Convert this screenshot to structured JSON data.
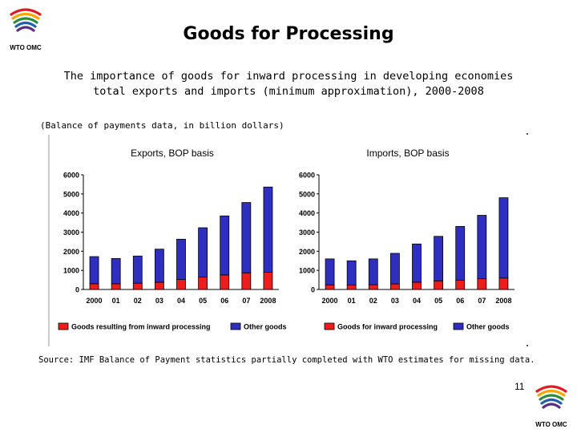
{
  "slide": {
    "title": "Goods for Processing",
    "subtitle_line1": "The importance of goods for inward processing in developing economies",
    "subtitle_line2": "total exports and imports (minimum approximation), 2000-2008",
    "note": "(Balance of payments data, in billion dollars)",
    "source": "Source: IMF Balance of Payment statistics partially completed with WTO estimates for missing data.",
    "page_number": "11",
    "logo_text": "WTO OMC"
  },
  "colors": {
    "processing": "#ee1c1c",
    "other": "#2e2fc0",
    "logo_stripes": [
      "#e21b23",
      "#f7a600",
      "#2c8c3c",
      "#1e5fb0",
      "#5a2d87"
    ]
  },
  "chart_data": [
    {
      "type": "bar",
      "stacked": true,
      "title": "Exports, BOP basis",
      "categories": [
        "2000",
        "01",
        "02",
        "03",
        "04",
        "05",
        "06",
        "07",
        "2008"
      ],
      "ylim": [
        0,
        6000
      ],
      "yticks": [
        0,
        1000,
        2000,
        3000,
        4000,
        5000,
        6000
      ],
      "grid": false,
      "legend_position": "bottom",
      "series": [
        {
          "name": "Goods resulting from inward processing",
          "values": [
            300,
            300,
            330,
            380,
            520,
            650,
            760,
            870,
            900
          ]
        },
        {
          "name": "Other goods",
          "values": [
            1420,
            1320,
            1420,
            1730,
            2110,
            2580,
            3090,
            3680,
            4460
          ]
        }
      ]
    },
    {
      "type": "bar",
      "stacked": true,
      "title": "Imports, BOP basis",
      "categories": [
        "2000",
        "01",
        "02",
        "03",
        "04",
        "05",
        "06",
        "07",
        "2008"
      ],
      "ylim": [
        0,
        6000
      ],
      "yticks": [
        0,
        1000,
        2000,
        3000,
        4000,
        5000,
        6000
      ],
      "grid": false,
      "legend_position": "bottom",
      "series": [
        {
          "name": "Goods for inward processing",
          "values": [
            240,
            230,
            250,
            290,
            380,
            450,
            490,
            560,
            600
          ]
        },
        {
          "name": "Other goods",
          "values": [
            1360,
            1270,
            1350,
            1600,
            2000,
            2330,
            2810,
            3320,
            4200
          ]
        }
      ]
    }
  ]
}
